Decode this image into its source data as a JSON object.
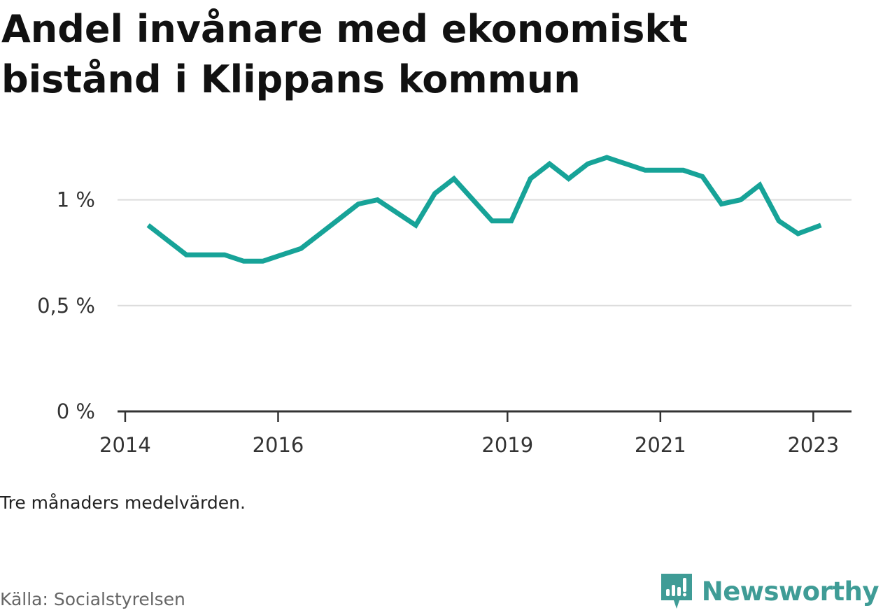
{
  "chart_data": {
    "type": "line",
    "title": "Andel invånare med ekonomiskt bistånd i Klippans kommun",
    "note": "Tre månaders medelvärden.",
    "source": "Källa: Socialstyrelsen",
    "y_ticks": [
      {
        "value": 0,
        "label": "0 %"
      },
      {
        "value": 0.5,
        "label": "0,5 %"
      },
      {
        "value": 1.0,
        "label": "1 %"
      }
    ],
    "x_ticks": [
      {
        "value": 2014.0,
        "label": "2014"
      },
      {
        "value": 2016.0,
        "label": "2016"
      },
      {
        "value": 2019.0,
        "label": "2019"
      },
      {
        "value": 2021.0,
        "label": "2021"
      },
      {
        "value": 2023.0,
        "label": "2023"
      }
    ],
    "xlim": [
      2013.9,
      2023.5
    ],
    "ylim": [
      0,
      1.25
    ],
    "grid": true,
    "line_color": "#17a398",
    "series": [
      {
        "x": [
          2014.3,
          2014.55,
          2014.8,
          2015.05,
          2015.3,
          2015.55,
          2015.8,
          2016.05,
          2016.3,
          2016.55,
          2016.8,
          2017.05,
          2017.3,
          2017.55,
          2017.8,
          2018.05,
          2018.3,
          2018.55,
          2018.8,
          2019.05,
          2019.3,
          2019.55,
          2019.8,
          2020.05,
          2020.3,
          2020.55,
          2020.8,
          2021.05,
          2021.3,
          2021.55,
          2021.8,
          2022.05,
          2022.3,
          2022.55,
          2022.8,
          2023.1
        ],
        "values": [
          0.88,
          0.81,
          0.74,
          0.74,
          0.74,
          0.71,
          0.71,
          0.74,
          0.77,
          0.84,
          0.91,
          0.98,
          1.0,
          0.94,
          0.88,
          1.03,
          1.1,
          1.0,
          0.9,
          0.9,
          1.1,
          1.17,
          1.1,
          1.17,
          1.2,
          1.17,
          1.14,
          1.14,
          1.14,
          1.11,
          0.98,
          1.0,
          1.07,
          0.9,
          0.84,
          0.88
        ]
      }
    ]
  },
  "brand": {
    "name": "Newsworthy",
    "icon": "newsworthy-logo-icon",
    "color": "#3f9c96"
  }
}
